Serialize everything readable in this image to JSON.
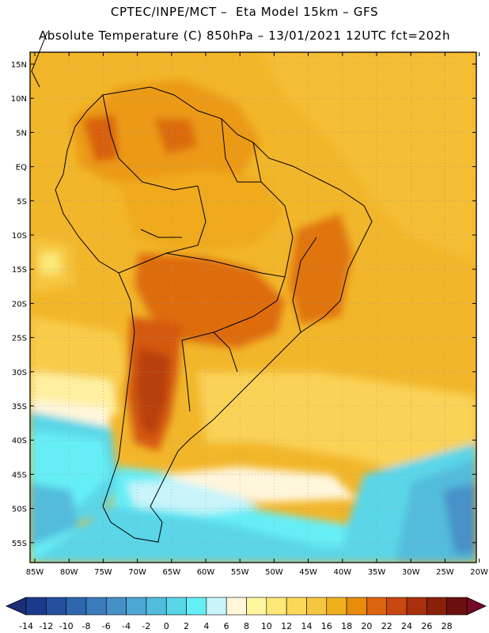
{
  "header": {
    "line1": "CPTEC/INPE/MCT –  Eta Model 15km – GFS",
    "line2": "Absolute Temperature (C) 850hPa – 13/01/2021 12UTC fct=202h"
  },
  "axes": {
    "lat_labels": [
      "15N",
      "10N",
      "5N",
      "EQ",
      "5S",
      "10S",
      "15S",
      "20S",
      "25S",
      "30S",
      "35S",
      "40S",
      "45S",
      "50S",
      "55S"
    ],
    "lon_labels": [
      "85W",
      "80W",
      "75W",
      "70W",
      "65W",
      "60W",
      "55W",
      "50W",
      "45W",
      "40W",
      "35W",
      "30W",
      "25W",
      "20W"
    ]
  },
  "colorbar": {
    "labels": [
      "-14",
      "-12",
      "-10",
      "-8",
      "-6",
      "-4",
      "-2",
      "0",
      "2",
      "4",
      "6",
      "8",
      "10",
      "12",
      "14",
      "16",
      "18",
      "20",
      "22",
      "24",
      "26",
      "28"
    ],
    "colors": [
      "#1c3a8c",
      "#24509e",
      "#2e66ae",
      "#3a7cbc",
      "#4690c8",
      "#4ea6d2",
      "#52bcdc",
      "#5ad6e8",
      "#66eef6",
      "#c8f4fa",
      "#fff6dc",
      "#fff6a0",
      "#fde878",
      "#fbd858",
      "#f6c640",
      "#f0b01e",
      "#e88c0c",
      "#dc640c",
      "#c84810",
      "#a8300c",
      "#88200a",
      "#6a1010"
    ],
    "under_color": "#1a2e7a",
    "over_color": "#760828"
  }
}
